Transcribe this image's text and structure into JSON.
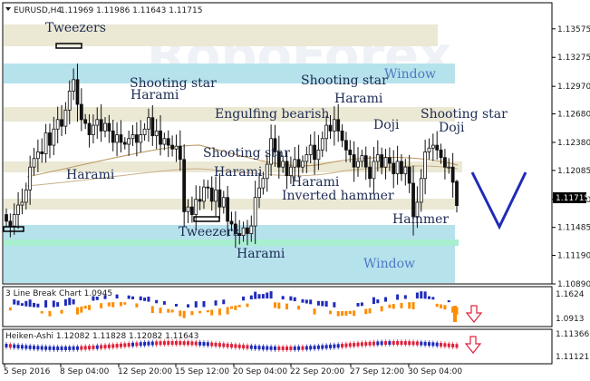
{
  "header": {
    "symbol": "EURUSD,H4",
    "ohlc": "1.11969 1.11986 1.11643 1.11715"
  },
  "watermark": "RoboForex",
  "price_axis": {
    "ticks": [
      "1.13575",
      "1.13275",
      "1.12970",
      "1.12680",
      "1.12380",
      "1.12085",
      "1.11780",
      "1.11485",
      "1.11190",
      "1.10890"
    ],
    "current": "1.11715"
  },
  "patterns": [
    {
      "id": "tweezers-top",
      "text": "Tweezers"
    },
    {
      "id": "harami-1",
      "text": "Harami"
    },
    {
      "id": "shooting-star-1",
      "text": "Shooting star"
    },
    {
      "id": "harami-2",
      "text": "Harami"
    },
    {
      "id": "shooting-star-2",
      "text": "Shooting star"
    },
    {
      "id": "harami-3",
      "text": "Harami"
    },
    {
      "id": "window-top",
      "text": "Window"
    },
    {
      "id": "engulfing-bearish",
      "text": "Engulfing bearish"
    },
    {
      "id": "doji-1",
      "text": "Doji"
    },
    {
      "id": "shooting-star-3",
      "text": "Shooting star"
    },
    {
      "id": "doji-2",
      "text": "Doji"
    },
    {
      "id": "shooting-star-4",
      "text": "Shooting star"
    },
    {
      "id": "harami-4",
      "text": "Harami"
    },
    {
      "id": "harami-5",
      "text": "Harami"
    },
    {
      "id": "inverted-hammer",
      "text": "Inverted hammer"
    },
    {
      "id": "tweezers-bottom",
      "text": "Tweezers"
    },
    {
      "id": "hammer",
      "text": "Hammer"
    },
    {
      "id": "harami-6",
      "text": "Harami"
    },
    {
      "id": "window-bottom",
      "text": "Window"
    }
  ],
  "indicator1": {
    "title": "3 Line Break Chart 1.0945",
    "ticks": [
      "1.1624",
      "1.0913"
    ]
  },
  "indicator2": {
    "title": "Heiken-Ashi 1.12082 1.11828 1.12082 1.11643",
    "ticks": [
      "1.11366",
      "1.11121"
    ]
  },
  "time_axis": [
    "5 Sep 2016",
    "8 Sep 04:00",
    "12 Sep 20:00",
    "15 Sep 12:00",
    "20 Sep 04:00",
    "22 Sep 20:00",
    "27 Sep 12:00",
    "30 Sep 04:00"
  ],
  "colors": {
    "bull": "#1f2bb8",
    "bear": "#ff8c00",
    "ha_bull": "#1f2bb8",
    "ha_bear": "#e0203a",
    "arrow_down": "#e0203a"
  },
  "chart_data": {
    "type": "candlestick",
    "symbol": "EURUSD",
    "timeframe": "H4",
    "last": {
      "open": 1.11969,
      "high": 1.11986,
      "low": 1.11643,
      "close": 1.11715
    },
    "ylim": [
      1.1089,
      1.1385
    ],
    "closes": [
      1.1155,
      1.115,
      1.1162,
      1.1172,
      1.1175,
      1.1188,
      1.1212,
      1.1221,
      1.1228,
      1.1226,
      1.1248,
      1.1235,
      1.1252,
      1.1262,
      1.1255,
      1.1272,
      1.1292,
      1.1304,
      1.1278,
      1.1262,
      1.1258,
      1.1246,
      1.1256,
      1.1262,
      1.125,
      1.1258,
      1.125,
      1.1238,
      1.1246,
      1.1238,
      1.1236,
      1.1242,
      1.1246,
      1.1238,
      1.1246,
      1.1252,
      1.1264,
      1.1245,
      1.125,
      1.1236,
      1.1242,
      1.1235,
      1.1231,
      1.1234,
      1.122,
      1.1165,
      1.117,
      1.1162,
      1.1178,
      1.1176,
      1.1191,
      1.119,
      1.1176,
      1.1188,
      1.117,
      1.118,
      1.1155,
      1.1152,
      1.1142,
      1.114,
      1.1148,
      1.1142,
      1.115,
      1.118,
      1.119,
      1.12,
      1.1215,
      1.1242,
      1.1228,
      1.1212,
      1.1218,
      1.1203,
      1.1212,
      1.122,
      1.1212,
      1.1218,
      1.1225,
      1.1235,
      1.122,
      1.123,
      1.1242,
      1.1256,
      1.125,
      1.1262,
      1.125,
      1.124,
      1.123,
      1.1225,
      1.1212,
      1.1218,
      1.1224,
      1.1212,
      1.12,
      1.1218,
      1.1225,
      1.1212,
      1.1222,
      1.1216,
      1.1205,
      1.1218,
      1.1205,
      1.1212,
      1.1195,
      1.116,
      1.1175,
      1.12,
      1.1228,
      1.1232,
      1.1235,
      1.123,
      1.1222,
      1.1212,
      1.1212,
      1.1196,
      1.1172
    ],
    "forecast": {
      "low": 1.1146,
      "high": 1.1207
    }
  }
}
